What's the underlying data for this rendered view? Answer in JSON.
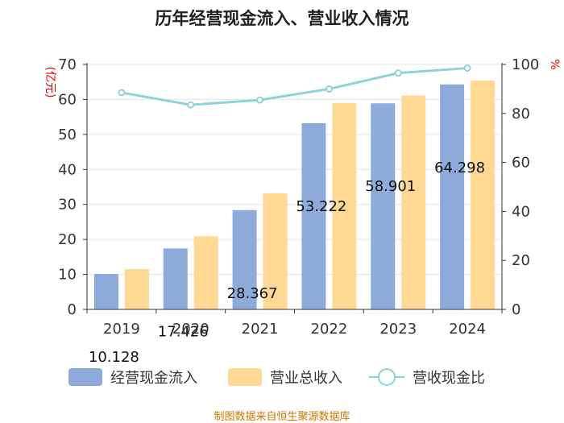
{
  "chart_data": {
    "type": "bar",
    "title": "历年经营现金流入、营业收入情况",
    "categories": [
      "2019",
      "2020",
      "2021",
      "2022",
      "2023",
      "2024"
    ],
    "series": [
      {
        "name": "经营现金流入",
        "type": "bar",
        "axis": "left",
        "color": "#8eaadb",
        "values": [
          10.128,
          17.426,
          28.367,
          53.222,
          58.901,
          64.298
        ],
        "data_labels": [
          "10.128",
          "17.426",
          "28.367",
          "53.222",
          "58.901",
          "64.298"
        ]
      },
      {
        "name": "营业总收入",
        "type": "bar",
        "axis": "left",
        "color": "#ffd994",
        "values": [
          11.5,
          20.9,
          33.2,
          59.0,
          61.1,
          65.4
        ]
      },
      {
        "name": "营收现金比",
        "type": "line",
        "axis": "right",
        "color": "#8dd3d7",
        "values": [
          88.5,
          83.5,
          85.5,
          90.0,
          96.5,
          98.5
        ]
      }
    ],
    "ylabel_left": "亿元",
    "ylabel_right": "%",
    "ylim_left": [
      0,
      70
    ],
    "ylim_right": [
      0,
      100
    ],
    "yticks_left": [
      0,
      10,
      20,
      30,
      40,
      50,
      60,
      70
    ],
    "yticks_right": [
      0,
      20,
      40,
      60,
      80,
      100
    ],
    "grid": true,
    "legend_position": "bottom"
  },
  "source_text": "制图数据来自恒生聚源数据库"
}
